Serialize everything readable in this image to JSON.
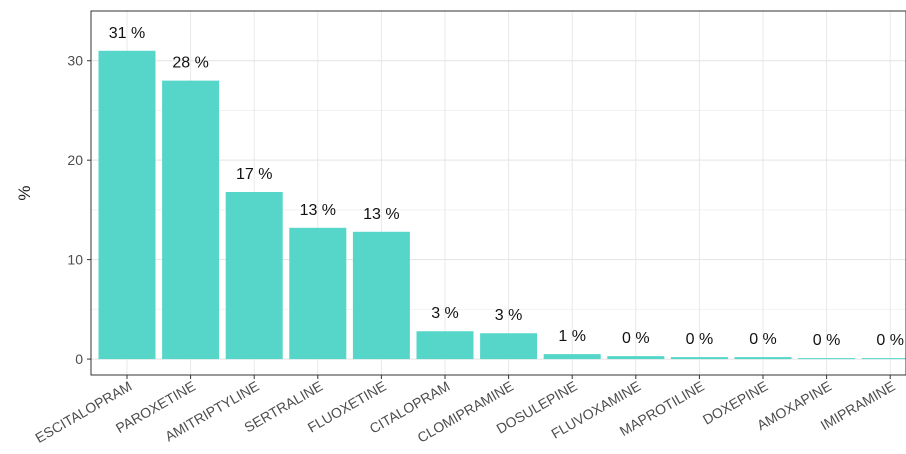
{
  "chart_data": {
    "type": "bar",
    "title": "",
    "xlabel": "",
    "ylabel": "%",
    "ylim": [
      -1.6,
      35
    ],
    "yticks": [
      0,
      10,
      20,
      30
    ],
    "grid": true,
    "bar_color": "#56d6c9",
    "categories": [
      "ESCITALOPRAM",
      "PAROXETINE",
      "AMITRIPTYLINE",
      "SERTRALINE",
      "FLUOXETINE",
      "CITALOPRAM",
      "CLOMIPRAMINE",
      "DOSULEPINE",
      "FLUVOXAMINE",
      "MAPROTILINE",
      "DOXEPINE",
      "AMOXAPINE",
      "IMIPRAMINE"
    ],
    "values": [
      31.0,
      28.0,
      16.8,
      13.2,
      12.8,
      2.8,
      2.6,
      0.5,
      0.3,
      0.2,
      0.2,
      0.1,
      0.1
    ],
    "data_labels": [
      "31 %",
      "28 %",
      "17 %",
      "13 %",
      "13 %",
      "3 %",
      "3 %",
      "1 %",
      "0 %",
      "0 %",
      "0 %",
      "0 %",
      "0 %"
    ]
  }
}
